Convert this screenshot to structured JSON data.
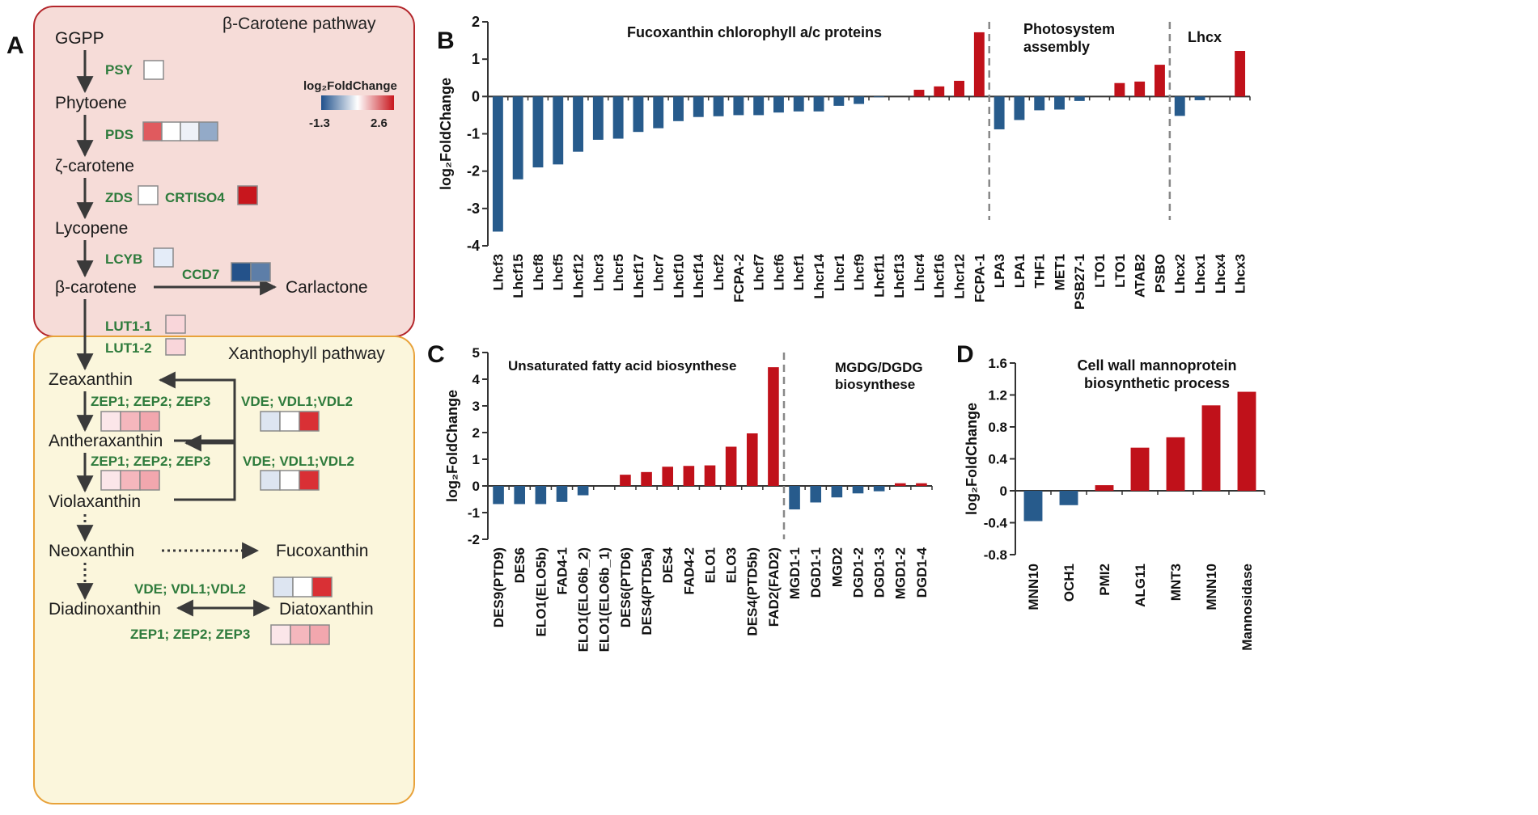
{
  "panel_labels": {
    "a": "A",
    "b": "B",
    "c": "C",
    "d": "D"
  },
  "pathway": {
    "beta_title": "β-Carotene pathway",
    "xantho_title": "Xanthophyll pathway",
    "legend_title": "log₂FoldChange",
    "legend_min": "-1.3",
    "legend_max": "2.6",
    "legend_colors": [
      "#20518c",
      "#ffffff",
      "#c8161d"
    ],
    "metabolites": {
      "ggpp": "GGPP",
      "phytoene": "Phytoene",
      "zcarotene": "ζ-carotene",
      "lycopene": "Lycopene",
      "bcarotene": "β-carotene",
      "carlactone": "Carlactone",
      "zeaxanthin": "Zeaxanthin",
      "antheraxanthin": "Antheraxanthin",
      "violaxanthin": "Violaxanthin",
      "neoxanthin": "Neoxanthin",
      "fucoxanthin": "Fucoxanthin",
      "diadinoxanthin": "Diadinoxanthin",
      "diatoxanthin": "Diatoxanthin"
    },
    "genes": {
      "psy": "PSY",
      "pds": "PDS",
      "zds": "ZDS",
      "crtiso4": "CRTISO4",
      "lcyb": "LCYB",
      "ccd7": "CCD7",
      "lut11": "LUT1-1",
      "lut12": "LUT1-2",
      "zep1": "ZEP1; ZEP2; ZEP3",
      "zep2": "ZEP1; ZEP2; ZEP3",
      "zep3": "ZEP1; ZEP2; ZEP3",
      "vde1": "VDE; VDL1;VDL2",
      "vde2": "VDE; VDL1;VDL2",
      "vde3": "VDE; VDL1;VDL2"
    },
    "heat_colors": {
      "psy": [
        "#ffffff"
      ],
      "pds": [
        "#e05a5e",
        "#ffffff",
        "#eef1f8",
        "#93aac8"
      ],
      "zds": [
        "#ffffff"
      ],
      "crtiso4": [
        "#c8161d"
      ],
      "lcyb": [
        "#e4ecf8"
      ],
      "ccd7": [
        "#24528a",
        "#5d7ea8"
      ],
      "lut11": [
        "#f9d6da"
      ],
      "lut12": [
        "#f9d6da"
      ],
      "zep_a": [
        "#fbe6e9",
        "#f5b7bd",
        "#f2a7ae"
      ],
      "vde_a": [
        "#dde5f1",
        "#ffffff",
        "#d93035"
      ],
      "zep_b": [
        "#fbe6e9",
        "#f5b7bd",
        "#f2a7ae"
      ],
      "vde_b": [
        "#dde5f1",
        "#ffffff",
        "#d93035"
      ],
      "vde_c": [
        "#dde5f1",
        "#ffffff",
        "#d93035"
      ],
      "zep_c": [
        "#fbe6e9",
        "#f5b7bd",
        "#f2a7ae"
      ]
    }
  },
  "colors": {
    "up": "#c0111a",
    "down": "#275b8c",
    "dash": "#888888",
    "text_green": "#2e7b3c"
  },
  "chart_data": [
    {
      "id": "B",
      "type": "bar",
      "ylabel": "log₂FoldChange",
      "ylim": [
        -4,
        2
      ],
      "yticks": [
        2,
        1,
        0,
        -1,
        -2,
        -3,
        -4
      ],
      "groups": [
        {
          "title": "Fucoxanthin chlorophyll a/c proteins"
        },
        {
          "title_lines": [
            "Photosystem",
            "assembly"
          ]
        },
        {
          "title": "Lhcx"
        }
      ],
      "categories": [
        "Lhcf3",
        "Lhcf15",
        "Lhcf8",
        "Lhcf5",
        "Lhcf12",
        "Lhcr3",
        "Lhcr5",
        "Lhcf17",
        "Lhcr7",
        "Lhcf10",
        "Lhcf14",
        "Lhcf2",
        "FCPA-2",
        "Lhcf7",
        "Lhcf6",
        "Lhcf1",
        "Lhcr14",
        "Lhcr1",
        "Lhcf9",
        "Lhcf11",
        "Lhcf13",
        "Lhcr4",
        "Lhcf16",
        "Lhcr12",
        "FCPA-1",
        "LPA3",
        "LPA1",
        "THF1",
        "MET1",
        "PSB27-1",
        "LTO1",
        "LTO1",
        "ATAB2",
        "PSBO",
        "Lhcx2",
        "Lhcx1",
        "Lhcx4",
        "Lhcx3"
      ],
      "values": [
        -3.62,
        -2.22,
        -1.9,
        -1.82,
        -1.48,
        -1.16,
        -1.13,
        -0.95,
        -0.85,
        -0.66,
        -0.55,
        -0.53,
        -0.5,
        -0.5,
        -0.43,
        -0.4,
        -0.4,
        -0.25,
        -0.2,
        -0.02,
        0,
        0.18,
        0.27,
        0.42,
        1.72,
        -0.88,
        -0.63,
        -0.37,
        -0.35,
        -0.12,
        0,
        0.36,
        0.4,
        0.85,
        -0.52,
        -0.1,
        0,
        1.22
      ],
      "dividers_after": [
        24,
        33
      ]
    },
    {
      "id": "C",
      "type": "bar",
      "ylabel": "log₂FoldChange",
      "ylim": [
        -2,
        5
      ],
      "yticks": [
        5,
        4,
        3,
        2,
        1,
        0,
        -1,
        -2
      ],
      "groups": [
        {
          "title": "Unsaturated fatty acid biosynthese"
        },
        {
          "title_lines": [
            "MGDG/DGDG",
            "biosynthese"
          ]
        }
      ],
      "categories": [
        "DES9(PTD9)",
        "DES6",
        "ELO1(ELO5b)",
        "FAD4-1",
        "ELO1(ELO6b_2)",
        "ELO1(ELO6b_1)",
        "DES6(PTD6)",
        "DES4(PTD5a)",
        "DES4",
        "FAD4-2",
        "ELO1",
        "ELO3",
        "DES4(PTD5b)",
        "FAD2(FAD2)",
        "MGD1-1",
        "DGD1-1",
        "MGD2",
        "DGD1-2",
        "DGD1-3",
        "MGD1-2",
        "DGD1-4"
      ],
      "values": [
        -0.68,
        -0.68,
        -0.68,
        -0.6,
        -0.35,
        0,
        0.42,
        0.52,
        0.72,
        0.75,
        0.77,
        1.47,
        1.97,
        4.45,
        -0.88,
        -0.62,
        -0.43,
        -0.28,
        -0.2,
        0.1,
        0.1
      ],
      "dividers_after": [
        13
      ]
    },
    {
      "id": "D",
      "type": "bar",
      "ylabel": "log₂FoldChange",
      "ylim": [
        -0.8,
        1.6
      ],
      "yticks": [
        "1.6",
        "1.2",
        "0.8",
        "0.4",
        "0",
        "-0.4",
        "-0.8"
      ],
      "groups": [
        {
          "title_lines": [
            "Cell wall mannoprotein",
            "biosynthetic process"
          ]
        }
      ],
      "categories": [
        "MNN10",
        "OCH1",
        "PMI2",
        "ALG11",
        "MNT3",
        "MNN10",
        "Mannosidase"
      ],
      "values": [
        -0.38,
        -0.18,
        0.07,
        0.54,
        0.67,
        1.07,
        1.24
      ],
      "dividers_after": []
    }
  ]
}
